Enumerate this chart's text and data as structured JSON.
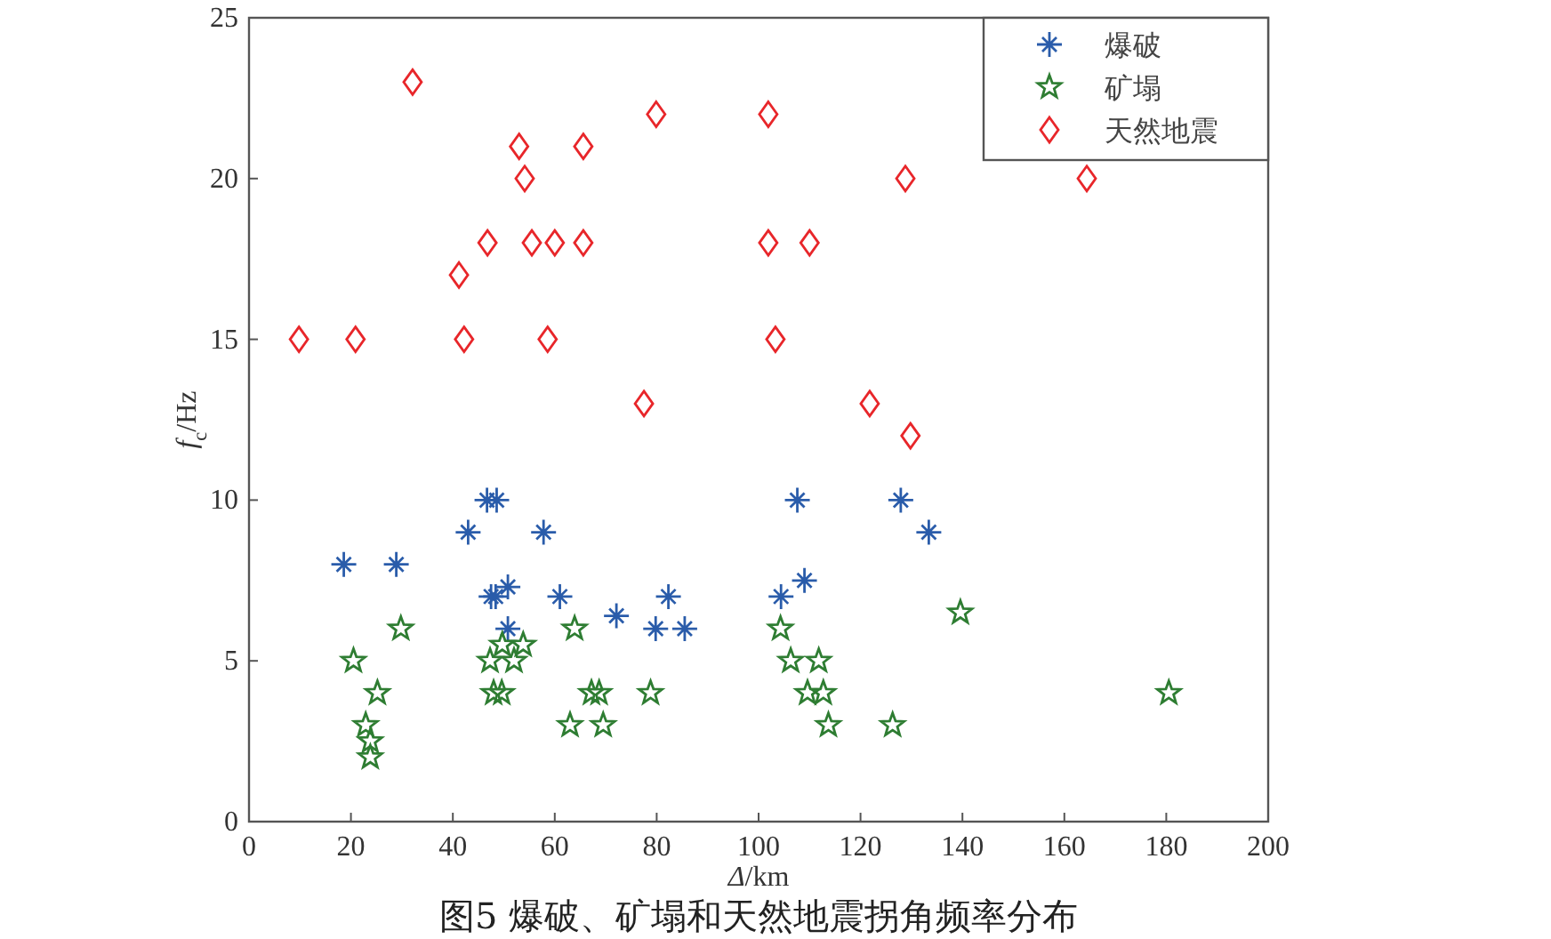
{
  "chart_data": {
    "type": "scatter",
    "xlabel": "*Δ*/km",
    "ylabel": "*f*$_{c}$/Hz",
    "xlim": [
      0,
      200
    ],
    "ylim": [
      0,
      25
    ],
    "xticks": [
      0,
      20,
      40,
      60,
      80,
      100,
      120,
      140,
      160,
      180,
      200
    ],
    "yticks": [
      0,
      5,
      10,
      15,
      20,
      25
    ],
    "grid": false,
    "legend": "top right",
    "annotations": [
      "图5 爆破、矿塌和天然地震拐角频率分布"
    ],
    "series": [
      {
        "name": "爆破",
        "color": "#2a5caa",
        "marker": "cross",
        "x": [
          18.6,
          28.9,
          43,
          46.7,
          48.6,
          57.8,
          47.5,
          48.4,
          50.8,
          50.8,
          61,
          72.1,
          79.8,
          82.3,
          85.5,
          104.4,
          107.6,
          109,
          127.9,
          133.4
        ],
        "values": [
          8,
          8,
          9,
          10,
          10,
          9,
          7,
          7,
          7.3,
          6,
          7,
          6.4,
          6,
          7,
          6,
          7,
          10,
          7.5,
          10,
          9
        ]
      },
      {
        "name": "矿塌",
        "color": "#2e7d32",
        "marker": "star",
        "x": [
          29.8,
          20.5,
          25.2,
          22.9,
          23.8,
          23.8,
          47.3,
          49.7,
          53.8,
          52,
          48,
          49.6,
          63.9,
          67.2,
          68.7,
          78.8,
          63,
          69.5,
          104.3,
          106.3,
          111.8,
          109.6,
          112.7,
          113.7,
          126.3,
          139.6,
          180.5
        ],
        "values": [
          6,
          5,
          4,
          3,
          2.5,
          2,
          5,
          5.5,
          5.5,
          5,
          4,
          4,
          6,
          4,
          4,
          4,
          3,
          3,
          6,
          5,
          5,
          4,
          4,
          3,
          3,
          6.5,
          4
        ]
      },
      {
        "name": "天然地震",
        "color": "#e8262a",
        "marker": "diamond",
        "x": [
          9.8,
          20.9,
          32.1,
          41.2,
          42.2,
          46.8,
          53,
          54.1,
          55.5,
          60,
          58.6,
          65.6,
          65.6,
          77.5,
          79.9,
          101.9,
          101.9,
          103.3,
          110,
          121.8,
          128.8,
          129.8,
          164.4
        ],
        "values": [
          15,
          15,
          23,
          17,
          15,
          18,
          21,
          20,
          18,
          18,
          15,
          21,
          18,
          13,
          22,
          22,
          18,
          15,
          18,
          13,
          20,
          12,
          20
        ]
      }
    ]
  }
}
